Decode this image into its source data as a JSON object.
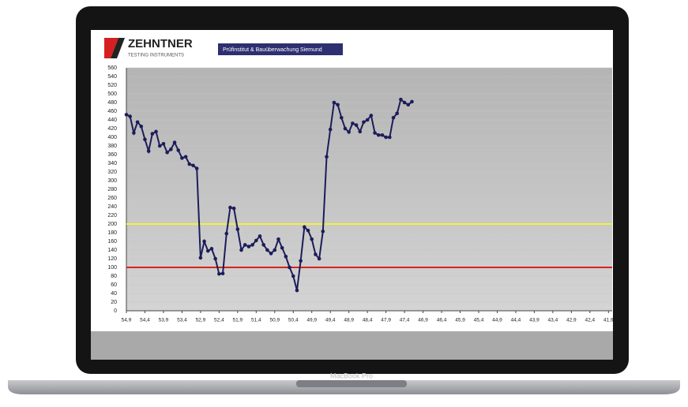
{
  "header": {
    "brand": "ZEHNTNER",
    "brand_sub": "TESTING INSTRUMENTS",
    "partner": "Prüfinstitut & Bauüberwachung Siemund"
  },
  "device": {
    "label": "MacBook Pro"
  },
  "chart_data": {
    "type": "line",
    "x": [
      54.9,
      54.8,
      54.7,
      54.6,
      54.5,
      54.4,
      54.3,
      54.2,
      54.1,
      54.0,
      53.9,
      53.8,
      53.7,
      53.6,
      53.5,
      53.4,
      53.3,
      53.2,
      53.1,
      53.0,
      52.9,
      52.8,
      52.7,
      52.6,
      52.5,
      52.4,
      52.3,
      52.2,
      52.1,
      52.0,
      51.9,
      51.8,
      51.7,
      51.6,
      51.5,
      51.4,
      51.3,
      51.2,
      51.1,
      51.0,
      50.9,
      50.8,
      50.7,
      50.6,
      50.5,
      50.4,
      50.3,
      50.2,
      50.1,
      50.0,
      49.9,
      49.8,
      49.7,
      49.6,
      49.5,
      49.4,
      49.3,
      49.2,
      49.1,
      49.0,
      48.9,
      48.8,
      48.7,
      48.6,
      48.5,
      48.4,
      48.3,
      48.2,
      48.1,
      48.0,
      47.9,
      47.8,
      47.7,
      47.6,
      47.5,
      47.4,
      47.3,
      47.2
    ],
    "values": [
      452,
      448,
      410,
      435,
      425,
      395,
      368,
      408,
      413,
      380,
      385,
      365,
      372,
      388,
      370,
      352,
      355,
      338,
      335,
      328,
      122,
      160,
      138,
      143,
      120,
      85,
      86,
      178,
      238,
      236,
      188,
      140,
      152,
      148,
      152,
      162,
      172,
      152,
      140,
      132,
      140,
      165,
      145,
      125,
      100,
      80,
      47,
      115,
      193,
      185,
      165,
      130,
      120,
      183,
      355,
      418,
      480,
      475,
      445,
      420,
      412,
      432,
      428,
      413,
      435,
      440,
      450,
      410,
      405,
      405,
      400,
      400,
      445,
      455,
      487,
      480,
      475,
      482
    ],
    "color": "#1c1c5a",
    "xlim": [
      54.9,
      41.8
    ],
    "ylim": [
      0,
      560
    ],
    "yticks": [
      0,
      20,
      40,
      60,
      80,
      100,
      120,
      140,
      160,
      180,
      200,
      220,
      240,
      260,
      280,
      300,
      320,
      340,
      360,
      380,
      400,
      420,
      440,
      460,
      480,
      500,
      520,
      540,
      560
    ],
    "xticks": [
      {
        "value": 54.9,
        "label": "54,9"
      },
      {
        "value": 54.4,
        "label": "54,4"
      },
      {
        "value": 53.9,
        "label": "53,9"
      },
      {
        "value": 53.4,
        "label": "53,4"
      },
      {
        "value": 52.9,
        "label": "52,9"
      },
      {
        "value": 52.4,
        "label": "52,4"
      },
      {
        "value": 51.9,
        "label": "51,9"
      },
      {
        "value": 51.4,
        "label": "51,4"
      },
      {
        "value": 50.9,
        "label": "50,9"
      },
      {
        "value": 50.4,
        "label": "50,4"
      },
      {
        "value": 49.9,
        "label": "49,9"
      },
      {
        "value": 49.4,
        "label": "49,4"
      },
      {
        "value": 48.9,
        "label": "48,9"
      },
      {
        "value": 48.4,
        "label": "48,4"
      },
      {
        "value": 47.9,
        "label": "47,9"
      },
      {
        "value": 47.4,
        "label": "47,4"
      },
      {
        "value": 46.9,
        "label": "46,9"
      },
      {
        "value": 46.4,
        "label": "46,4"
      },
      {
        "value": 45.9,
        "label": "45,9"
      },
      {
        "value": 45.4,
        "label": "45,4"
      },
      {
        "value": 44.9,
        "label": "44,9"
      },
      {
        "value": 44.4,
        "label": "44,4"
      },
      {
        "value": 43.9,
        "label": "43,9"
      },
      {
        "value": 43.4,
        "label": "43,4"
      },
      {
        "value": 42.9,
        "label": "42,9"
      },
      {
        "value": 42.4,
        "label": "42,4"
      },
      {
        "value": 41.9,
        "label": "41,9"
      }
    ],
    "reference_lines": [
      {
        "value": 200,
        "color": "#f4f03a"
      },
      {
        "value": 100,
        "color": "#d8221e"
      }
    ],
    "grid": true
  }
}
